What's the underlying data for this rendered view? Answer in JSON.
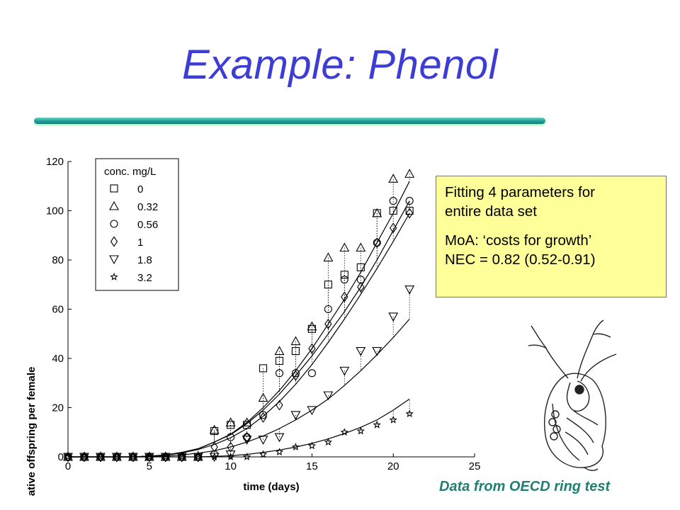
{
  "slide": {
    "title": "Example: Phenol",
    "note_lines": [
      "Fitting 4 parameters for",
      "entire data set",
      "MoA: ‘costs for growth’",
      "NEC = 0.82 (0.52-0.91)"
    ],
    "source": "Data from OECD ring test"
  },
  "chart_data": {
    "type": "scatter",
    "xlabel": "time (days)",
    "ylabel": "cumulative offspring per female",
    "xlim": [
      0,
      25
    ],
    "ylim": [
      0,
      120
    ],
    "xticks": [
      0,
      5,
      10,
      15,
      20,
      25
    ],
    "yticks": [
      0,
      20,
      40,
      60,
      80,
      100,
      120
    ],
    "grid": false,
    "legend": {
      "title": "conc. mg/L",
      "placement": "top-left"
    },
    "series": [
      {
        "name": "0",
        "marker": "square",
        "points": [
          [
            0,
            0
          ],
          [
            1,
            0
          ],
          [
            2,
            0
          ],
          [
            3,
            0
          ],
          [
            4,
            0
          ],
          [
            5,
            0
          ],
          [
            6,
            0
          ],
          [
            7,
            0
          ],
          [
            8,
            0
          ],
          [
            9,
            10.5
          ],
          [
            10,
            13
          ],
          [
            11,
            13
          ],
          [
            12,
            36
          ],
          [
            13,
            39
          ],
          [
            14,
            43
          ],
          [
            15,
            52
          ],
          [
            16,
            70
          ],
          [
            17,
            74
          ],
          [
            18,
            77
          ],
          [
            19,
            99
          ],
          [
            20,
            100
          ],
          [
            21,
            100
          ]
        ],
        "fit": [
          [
            0,
            0
          ],
          [
            4,
            0
          ],
          [
            5,
            0.3
          ],
          [
            6,
            0.8
          ],
          [
            7,
            1.8
          ],
          [
            8,
            3.3
          ],
          [
            9,
            6
          ],
          [
            10,
            9
          ],
          [
            11,
            13.5
          ],
          [
            12,
            19
          ],
          [
            13,
            25.5
          ],
          [
            14,
            33
          ],
          [
            15,
            41
          ],
          [
            16,
            50
          ],
          [
            17,
            59
          ],
          [
            18,
            69
          ],
          [
            19,
            80
          ],
          [
            20,
            92
          ],
          [
            21,
            104
          ]
        ]
      },
      {
        "name": "0.32",
        "marker": "triangle-up",
        "points": [
          [
            0,
            0
          ],
          [
            1,
            0
          ],
          [
            2,
            0
          ],
          [
            3,
            0
          ],
          [
            4,
            0
          ],
          [
            5,
            0
          ],
          [
            6,
            0
          ],
          [
            7,
            0
          ],
          [
            8,
            0
          ],
          [
            9,
            11
          ],
          [
            10,
            14
          ],
          [
            11,
            14
          ],
          [
            12,
            24
          ],
          [
            13,
            43
          ],
          [
            14,
            47
          ],
          [
            15,
            53
          ],
          [
            16,
            81
          ],
          [
            17,
            85
          ],
          [
            18,
            85
          ],
          [
            19,
            99
          ],
          [
            20,
            113
          ],
          [
            21,
            115
          ]
        ],
        "fit": [
          [
            0,
            0
          ],
          [
            4,
            0
          ],
          [
            5,
            0.3
          ],
          [
            6,
            0.8
          ],
          [
            7,
            1.8
          ],
          [
            8,
            3.3
          ],
          [
            9,
            6
          ],
          [
            10,
            9.2
          ],
          [
            11,
            14
          ],
          [
            12,
            20
          ],
          [
            13,
            27
          ],
          [
            14,
            35
          ],
          [
            15,
            44
          ],
          [
            16,
            54
          ],
          [
            17,
            64
          ],
          [
            18,
            75
          ],
          [
            19,
            87
          ],
          [
            20,
            99
          ],
          [
            21,
            112
          ]
        ]
      },
      {
        "name": "0.56",
        "marker": "circle",
        "points": [
          [
            0,
            0
          ],
          [
            1,
            0
          ],
          [
            2,
            0
          ],
          [
            3,
            0
          ],
          [
            4,
            0
          ],
          [
            5,
            0
          ],
          [
            6,
            0
          ],
          [
            7,
            0
          ],
          [
            8,
            0
          ],
          [
            9,
            1
          ],
          [
            10,
            8
          ],
          [
            11,
            8
          ],
          [
            12,
            17
          ],
          [
            13,
            34
          ],
          [
            14,
            34
          ],
          [
            15,
            34
          ],
          [
            16,
            60
          ],
          [
            17,
            72
          ],
          [
            18,
            72
          ],
          [
            19,
            87
          ],
          [
            20,
            104
          ],
          [
            21,
            104
          ]
        ]
      },
      {
        "name": "1",
        "marker": "diamond",
        "points": [
          [
            0,
            0
          ],
          [
            1,
            0
          ],
          [
            2,
            0
          ],
          [
            3,
            0
          ],
          [
            4,
            0
          ],
          [
            5,
            0
          ],
          [
            6,
            0
          ],
          [
            7,
            0
          ],
          [
            8,
            0
          ],
          [
            9,
            4
          ],
          [
            10,
            4
          ],
          [
            11,
            8
          ],
          [
            12,
            16
          ],
          [
            13,
            21
          ],
          [
            14,
            33
          ],
          [
            15,
            44
          ],
          [
            16,
            54
          ],
          [
            17,
            65
          ],
          [
            18,
            69
          ],
          [
            19,
            87
          ],
          [
            20,
            93
          ],
          [
            21,
            99
          ]
        ],
        "fit": [
          [
            0,
            0
          ],
          [
            4,
            0
          ],
          [
            5,
            0.3
          ],
          [
            6,
            0.7
          ],
          [
            7,
            1.6
          ],
          [
            8,
            3
          ],
          [
            9,
            5
          ],
          [
            10,
            7.8
          ],
          [
            11,
            11.5
          ],
          [
            12,
            16.5
          ],
          [
            13,
            22.5
          ],
          [
            14,
            29.5
          ],
          [
            15,
            37.5
          ],
          [
            16,
            46.5
          ],
          [
            17,
            56
          ],
          [
            18,
            66
          ],
          [
            19,
            76.5
          ],
          [
            20,
            87.5
          ],
          [
            21,
            99
          ]
        ]
      },
      {
        "name": "1.8",
        "marker": "triangle-down",
        "points": [
          [
            0,
            0
          ],
          [
            1,
            0
          ],
          [
            2,
            0
          ],
          [
            3,
            0
          ],
          [
            4,
            0
          ],
          [
            5,
            0
          ],
          [
            6,
            0
          ],
          [
            7,
            0
          ],
          [
            8,
            0
          ],
          [
            9,
            0
          ],
          [
            10,
            1
          ],
          [
            11,
            7
          ],
          [
            12,
            7
          ],
          [
            13,
            8
          ],
          [
            14,
            17
          ],
          [
            15,
            19
          ],
          [
            16,
            25
          ],
          [
            17,
            35
          ],
          [
            18,
            43
          ],
          [
            19,
            43
          ],
          [
            20,
            57
          ],
          [
            21,
            68
          ]
        ],
        "fit": [
          [
            0,
            0
          ],
          [
            5,
            0
          ],
          [
            6,
            0.3
          ],
          [
            7,
            0.8
          ],
          [
            8,
            1.5
          ],
          [
            9,
            2.5
          ],
          [
            10,
            4
          ],
          [
            11,
            6
          ],
          [
            12,
            8.5
          ],
          [
            13,
            11.5
          ],
          [
            14,
            15
          ],
          [
            15,
            19
          ],
          [
            16,
            23.5
          ],
          [
            17,
            29
          ],
          [
            18,
            35
          ],
          [
            19,
            41.5
          ],
          [
            20,
            48.5
          ],
          [
            21,
            56
          ]
        ]
      },
      {
        "name": "3.2",
        "marker": "star",
        "points": [
          [
            0,
            0
          ],
          [
            1,
            0
          ],
          [
            2,
            0
          ],
          [
            3,
            0
          ],
          [
            4,
            0
          ],
          [
            5,
            0
          ],
          [
            6,
            0
          ],
          [
            7,
            0
          ],
          [
            8,
            0
          ],
          [
            9,
            0
          ],
          [
            10,
            0
          ],
          [
            11,
            0
          ],
          [
            12,
            1
          ],
          [
            13,
            2
          ],
          [
            14,
            4
          ],
          [
            15,
            4.5
          ],
          [
            16,
            6
          ],
          [
            17,
            10
          ],
          [
            18,
            10.5
          ],
          [
            19,
            13
          ],
          [
            20,
            15
          ],
          [
            21,
            17.5
          ]
        ],
        "fit": [
          [
            0,
            0
          ],
          [
            8,
            0
          ],
          [
            9,
            0.2
          ],
          [
            10,
            0.5
          ],
          [
            11,
            1
          ],
          [
            12,
            1.8
          ],
          [
            13,
            2.8
          ],
          [
            14,
            4
          ],
          [
            15,
            5.5
          ],
          [
            16,
            7.3
          ],
          [
            17,
            9.5
          ],
          [
            18,
            12
          ],
          [
            19,
            15
          ],
          [
            20,
            19
          ],
          [
            21,
            23.5
          ]
        ]
      }
    ]
  }
}
